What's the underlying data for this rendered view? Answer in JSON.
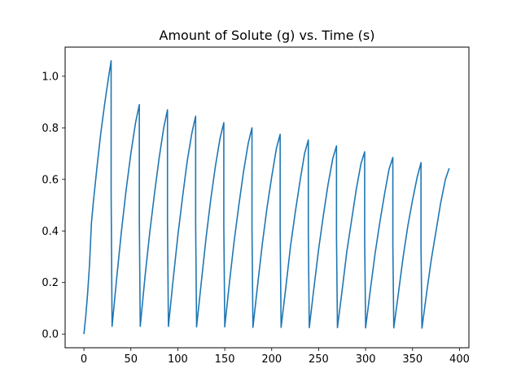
{
  "chart_data": {
    "type": "line",
    "title": "Amount of Solute (g) vs. Time (s)",
    "xlabel": "",
    "ylabel": "",
    "xlim": [
      -20,
      410
    ],
    "ylim": [
      -0.053,
      1.113
    ],
    "x_ticks": [
      0,
      50,
      100,
      150,
      200,
      250,
      300,
      350,
      400
    ],
    "y_ticks": [
      0.0,
      0.2,
      0.4,
      0.6,
      0.8,
      1.0
    ],
    "y_tick_labels": [
      "0.0",
      "0.2",
      "0.4",
      "0.6",
      "0.8",
      "1.0"
    ],
    "grid": false,
    "legend": "none",
    "series": [
      {
        "color": "#1f77b4",
        "x": [
          0,
          2,
          4,
          6,
          8,
          10,
          14,
          18,
          22,
          26,
          29,
          29,
          30,
          35,
          40,
          45,
          50,
          55,
          59,
          59,
          60,
          65,
          70,
          75,
          80,
          85,
          89,
          89,
          90,
          95,
          100,
          105,
          110,
          115,
          119,
          119,
          120,
          125,
          130,
          135,
          140,
          145,
          149,
          149,
          150,
          155,
          160,
          165,
          170,
          175,
          179,
          179,
          180,
          185,
          190,
          195,
          200,
          205,
          209,
          209,
          210,
          215,
          220,
          225,
          230,
          235,
          239,
          239,
          240,
          245,
          250,
          255,
          260,
          265,
          269,
          269,
          270,
          275,
          280,
          285,
          290,
          295,
          299,
          299,
          300,
          305,
          310,
          315,
          320,
          325,
          329,
          329,
          330,
          335,
          340,
          345,
          350,
          355,
          359,
          359,
          360,
          365,
          370,
          375,
          380,
          385,
          389
        ],
        "values": [
          0.0,
          0.07,
          0.16,
          0.27,
          0.43,
          0.51,
          0.65,
          0.78,
          0.89,
          0.99,
          1.06,
          0.55,
          0.03,
          0.22,
          0.4,
          0.56,
          0.7,
          0.82,
          0.89,
          0.45,
          0.03,
          0.22,
          0.39,
          0.54,
          0.68,
          0.8,
          0.87,
          0.44,
          0.03,
          0.21,
          0.38,
          0.53,
          0.67,
          0.78,
          0.845,
          0.43,
          0.028,
          0.2,
          0.37,
          0.52,
          0.65,
          0.76,
          0.82,
          0.42,
          0.028,
          0.2,
          0.36,
          0.5,
          0.63,
          0.74,
          0.8,
          0.41,
          0.026,
          0.19,
          0.35,
          0.49,
          0.61,
          0.72,
          0.775,
          0.4,
          0.026,
          0.18,
          0.34,
          0.47,
          0.59,
          0.7,
          0.753,
          0.39,
          0.025,
          0.18,
          0.33,
          0.46,
          0.58,
          0.68,
          0.73,
          0.38,
          0.025,
          0.17,
          0.32,
          0.44,
          0.56,
          0.66,
          0.707,
          0.37,
          0.024,
          0.17,
          0.31,
          0.43,
          0.54,
          0.64,
          0.685,
          0.35,
          0.024,
          0.16,
          0.3,
          0.42,
          0.52,
          0.61,
          0.665,
          0.34,
          0.023,
          0.16,
          0.29,
          0.4,
          0.51,
          0.6,
          0.643
        ]
      }
    ]
  }
}
